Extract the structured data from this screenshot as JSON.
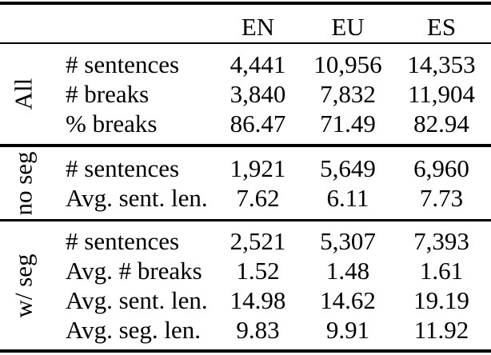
{
  "table": {
    "columns": [
      "EN",
      "EU",
      "ES"
    ],
    "groups": [
      {
        "label": "All",
        "rows": [
          {
            "metric": "# sentences",
            "values": [
              "4,441",
              "10,956",
              "14,353"
            ]
          },
          {
            "metric": "# breaks",
            "values": [
              "3,840",
              "7,832",
              "11,904"
            ]
          },
          {
            "metric": "% breaks",
            "values": [
              "86.47",
              "71.49",
              "82.94"
            ]
          }
        ]
      },
      {
        "label": "no seg",
        "rows": [
          {
            "metric": "# sentences",
            "values": [
              "1,921",
              "5,649",
              "6,960"
            ]
          },
          {
            "metric": "Avg. sent. len.",
            "values": [
              "7.62",
              "6.11",
              "7.73"
            ]
          }
        ]
      },
      {
        "label": "w/ seg",
        "rows": [
          {
            "metric": "# sentences",
            "values": [
              "2,521",
              "5,307",
              "7,393"
            ]
          },
          {
            "metric": "Avg. # breaks",
            "values": [
              "1.52",
              "1.48",
              "1.61"
            ]
          },
          {
            "metric": "Avg. sent. len.",
            "values": [
              "14.98",
              "14.62",
              "19.19"
            ]
          },
          {
            "metric": "Avg. seg. len.",
            "values": [
              "9.83",
              "9.91",
              "11.92"
            ]
          }
        ]
      }
    ]
  }
}
